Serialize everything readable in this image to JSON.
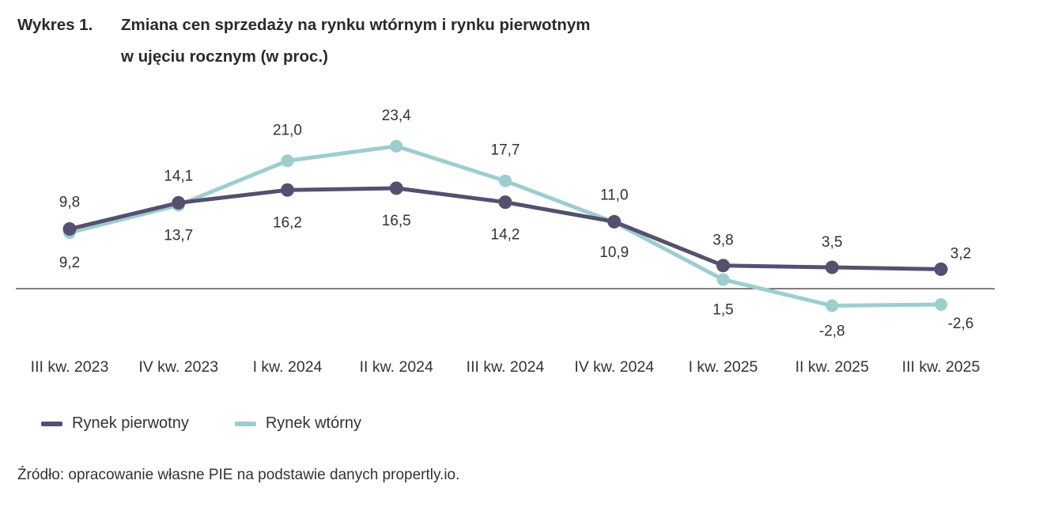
{
  "title": {
    "prefix": "Wykres 1.",
    "line1": "Zmiana cen sprzedaży na rynku wtórnym i rynku pierwotnym",
    "line2": "w ujęciu rocznym (w proc.)"
  },
  "legend": {
    "primary": "Rynek pierwotny",
    "secondary": "Rynek wtórny"
  },
  "source": "Źródło: opracowanie własne PIE na podstawie danych propertly.io.",
  "colors": {
    "primary": "#55506f",
    "secondary": "#9ecdd0",
    "axis": "#333333"
  },
  "chart_data": {
    "type": "line",
    "title": "Zmiana cen sprzedaży na rynku wtórnym i rynku pierwotnym w ujęciu rocznym (w proc.)",
    "xlabel": "",
    "ylabel": "",
    "ylim": [
      -5,
      25
    ],
    "grid": false,
    "legend_position": "bottom-left",
    "categories": [
      "III kw. 2023",
      "IV kw. 2023",
      "I kw. 2024",
      "II kw. 2024",
      "III kw. 2024",
      "IV kw. 2024",
      "I kw. 2025",
      "II kw. 2025",
      "III kw. 2025"
    ],
    "series": [
      {
        "name": "Rynek pierwotny",
        "values": [
          9.8,
          14.1,
          16.2,
          16.5,
          14.2,
          11.0,
          3.8,
          3.5,
          3.2
        ],
        "labels": [
          "9,8",
          "14,1",
          "16,2",
          "16,5",
          "14,2",
          "11,0",
          "3,8",
          "3,5",
          "3,2"
        ]
      },
      {
        "name": "Rynek wtórny",
        "values": [
          9.2,
          13.7,
          21.0,
          23.4,
          17.7,
          10.9,
          1.5,
          -2.8,
          -2.6
        ],
        "labels": [
          "9,2",
          "13,7",
          "21,0",
          "23,4",
          "17,7",
          "10,9",
          "1,5",
          "-2,8",
          "-2,6"
        ]
      }
    ]
  }
}
